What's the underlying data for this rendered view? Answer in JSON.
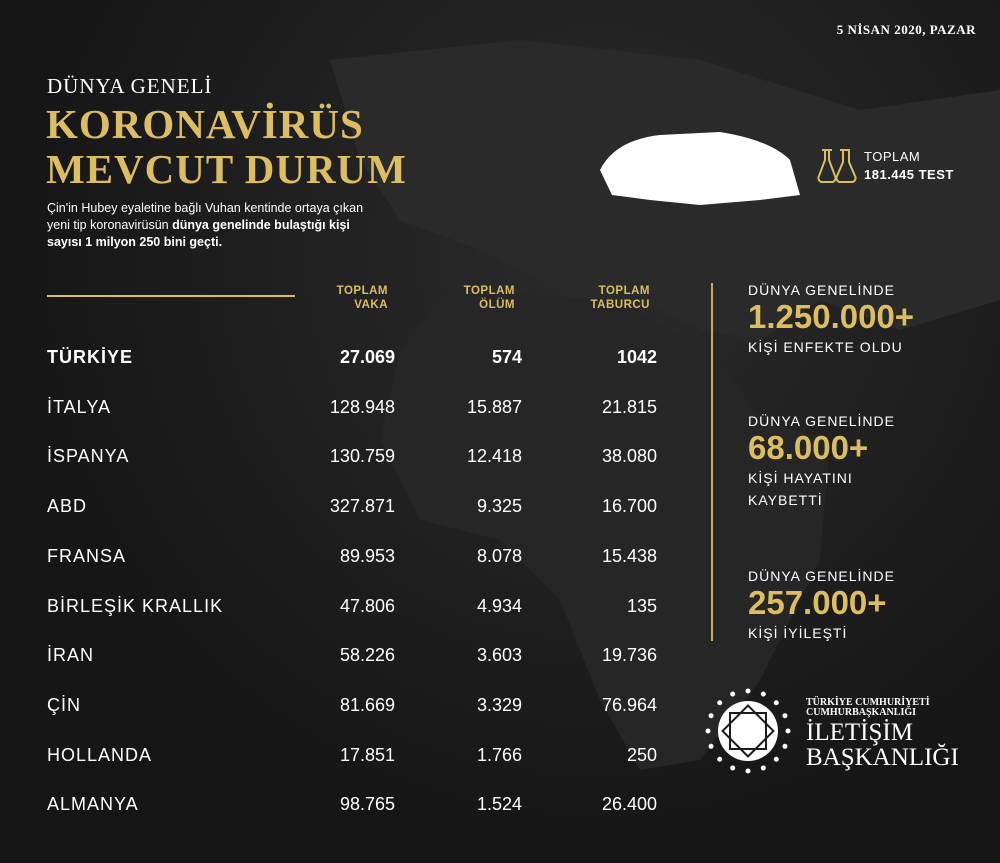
{
  "date": "5 NİSAN 2020, PAZAR",
  "header": {
    "subtitle": "DÜNYA GENELİ",
    "title_line1": "KORONAVİRÜS",
    "title_line2": "MEVCUT DURUM",
    "intro_normal": "Çin'in Hubey eyaletine bağlı Vuhan kentinde ortaya çıkan yeni tip koronavirüsün ",
    "intro_bold": "dünya genelinde bulaştığı kişi sayısı 1 milyon 250 bini geçti."
  },
  "test": {
    "label": "TOPLAM",
    "value": "181.445 TEST"
  },
  "table": {
    "headers": [
      [
        "TOPLAM",
        "VAKA"
      ],
      [
        "TOPLAM",
        "ÖLÜM"
      ],
      [
        "TOPLAM",
        "TABURCU"
      ]
    ],
    "rows": [
      [
        "TÜRKİYE",
        "27.069",
        "574",
        "1042"
      ],
      [
        "İTALYA",
        "128.948",
        "15.887",
        "21.815"
      ],
      [
        "İSPANYA",
        "130.759",
        "12.418",
        "38.080"
      ],
      [
        "ABD",
        "327.871",
        "9.325",
        "16.700"
      ],
      [
        "FRANSA",
        "89.953",
        "8.078",
        "15.438"
      ],
      [
        "BİRLEŞİK KRALLIK",
        "47.806",
        "4.934",
        "135"
      ],
      [
        "İRAN",
        "58.226",
        "3.603",
        "19.736"
      ],
      [
        "ÇİN",
        "81.669",
        "3.329",
        "76.964"
      ],
      [
        "HOLLANDA",
        "17.851",
        "1.766",
        "250"
      ],
      [
        "ALMANYA",
        "98.765",
        "1.524",
        "26.400"
      ]
    ]
  },
  "stats": [
    {
      "l1": "DÜNYA GENELİNDE",
      "big": "1.250.000+",
      "l3": "KİŞİ ENFEKTE OLDU",
      "l4": ""
    },
    {
      "l1": "DÜNYA GENELİNDE",
      "big": "68.000+",
      "l3": "KİŞİ HAYATINI",
      "l4": "KAYBETTİ"
    },
    {
      "l1": "DÜNYA GENELİNDE",
      "big": "257.000+",
      "l3": "KİŞİ İYİLEŞTİ",
      "l4": ""
    }
  ],
  "logo": {
    "line1": "TÜRKİYE CUMHURİYETİ",
    "line2": "CUMHURBAŞKANLIĞI",
    "line3": "İLETİŞİM",
    "line4": "BAŞKANLIĞI"
  },
  "colors": {
    "gold": "#dcbd62",
    "background": "#1c1c1c"
  }
}
